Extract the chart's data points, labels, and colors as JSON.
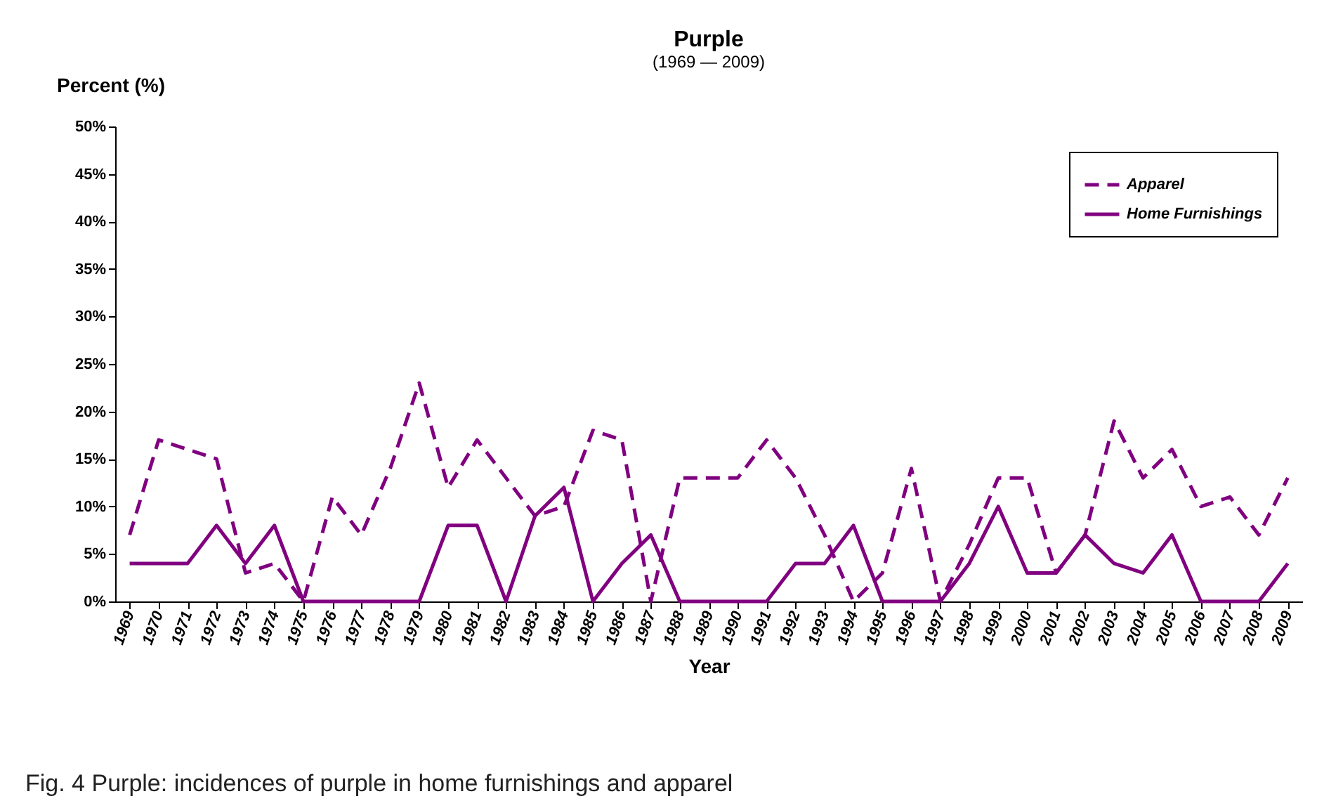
{
  "chart_data": {
    "type": "line",
    "title": "Purple",
    "subtitle": "(1969 — 2009)",
    "xlabel": "Year",
    "ylabel": "Percent (%)",
    "categories": [
      "1969",
      "1970",
      "1971",
      "1972",
      "1973",
      "1974",
      "1975",
      "1976",
      "1977",
      "1978",
      "1979",
      "1980",
      "1981",
      "1982",
      "1983",
      "1984",
      "1985",
      "1986",
      "1987",
      "1988",
      "1989",
      "1990",
      "1991",
      "1992",
      "1993",
      "1994",
      "1995",
      "1996",
      "1997",
      "1998",
      "1999",
      "2000",
      "2001",
      "2002",
      "2003",
      "2004",
      "2005",
      "2006",
      "2007",
      "2008",
      "2009"
    ],
    "series": [
      {
        "name": "Apparel",
        "color": "#800080",
        "line_style": "dashed",
        "values": [
          7,
          17,
          16,
          15,
          3,
          4,
          0,
          11,
          7,
          14,
          23,
          12,
          17,
          13,
          9,
          10,
          18,
          17,
          0,
          13,
          13,
          13,
          17,
          13,
          7,
          0,
          3,
          14,
          0,
          6,
          13,
          13,
          3,
          7,
          19,
          13,
          16,
          10,
          11,
          7,
          13
        ]
      },
      {
        "name": "Home Furnishings",
        "color": "#800080",
        "line_style": "solid",
        "values": [
          4,
          4,
          4,
          8,
          4,
          8,
          0,
          0,
          0,
          0,
          0,
          8,
          8,
          0,
          9,
          12,
          0,
          4,
          7,
          0,
          0,
          0,
          0,
          4,
          4,
          8,
          0,
          0,
          0,
          4,
          10,
          3,
          3,
          7,
          4,
          3,
          7,
          0,
          0,
          0,
          4
        ]
      }
    ],
    "ylim": [
      0,
      50
    ],
    "yticks": [
      {
        "value": 0,
        "label": "0%"
      },
      {
        "value": 5,
        "label": "5%"
      },
      {
        "value": 10,
        "label": "10%"
      },
      {
        "value": 15,
        "label": "15%"
      },
      {
        "value": 20,
        "label": "20%"
      },
      {
        "value": 25,
        "label": "25%"
      },
      {
        "value": 30,
        "label": "30%"
      },
      {
        "value": 35,
        "label": "35%"
      },
      {
        "value": 40,
        "label": "40%"
      },
      {
        "value": 45,
        "label": "45%"
      },
      {
        "value": 50,
        "label": "50%"
      }
    ],
    "grid": false,
    "legend": "top right",
    "annotations": [
      "Fig. 4  Purple: incidences of purple in home furnishings and apparel"
    ]
  }
}
